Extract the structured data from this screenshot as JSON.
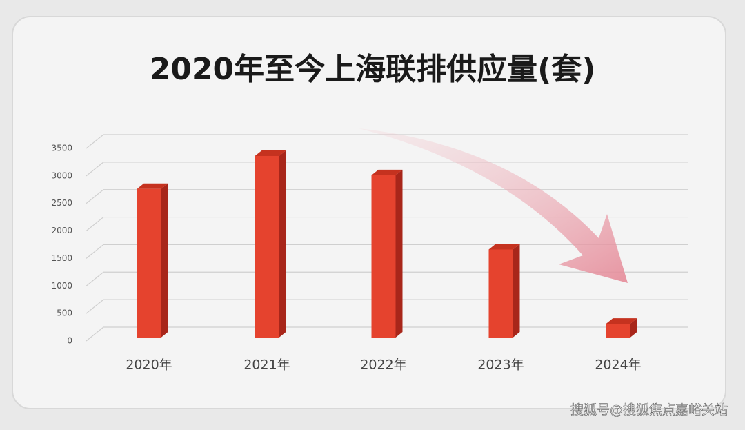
{
  "chart_data": {
    "type": "bar",
    "title": "2020年至今上海联排供应量(套)",
    "categories": [
      "2020年",
      "2021年",
      "2022年",
      "2023年",
      "2024年"
    ],
    "values": [
      2700,
      3300,
      2950,
      1600,
      250
    ],
    "color": "#e5432e",
    "ylim": [
      0,
      3500
    ],
    "yticks": [
      0,
      500,
      1000,
      1500,
      2000,
      2500,
      3000,
      3500
    ],
    "grid": true,
    "watermark": "搜狐号@搜狐焦点嘉峪关站"
  }
}
